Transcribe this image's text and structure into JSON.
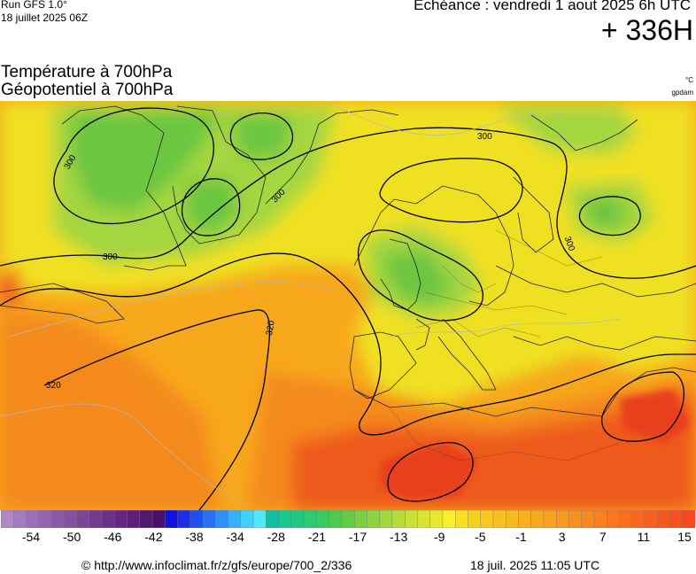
{
  "header": {
    "run_label": "Run GFS 1.0°",
    "run_date": "18 juillet 2025 06Z",
    "valid_time": "Echéance : vendredi 1 aout 2025 6h UTC",
    "lead_time": "+ 336H",
    "title_line1": "Température à 700hPa",
    "title_line2": "Géopotentiel à 700hPa",
    "unit_temperature": "°C",
    "unit_geopotential": "gpdam"
  },
  "map": {
    "contour_labels": [
      "300",
      "300",
      "300",
      "300",
      "300",
      "320",
      "320"
    ],
    "colors": {
      "cold_green": "#6cc640",
      "mid_green": "#a4d640",
      "yellow": "#f0e020",
      "orange": "#f7a81c",
      "warm_orange": "#f48a1c",
      "red_orange": "#ee5a1c",
      "contour": "#000000",
      "coast": "#1e1e1e"
    }
  },
  "colorbar": {
    "colors": [
      "#b088c8",
      "#a47cc0",
      "#9c70b8",
      "#9464b0",
      "#8c5aa8",
      "#8450a0",
      "#7c4498",
      "#743a90",
      "#6c3088",
      "#642880",
      "#5c2078",
      "#541870",
      "#4c1068",
      "#1010e0",
      "#1830e8",
      "#2050ec",
      "#2870f0",
      "#3090f4",
      "#38b0f8",
      "#40d0fc",
      "#50e8ff",
      "#10c0a0",
      "#18c890",
      "#20c880",
      "#30c870",
      "#40c860",
      "#50c850",
      "#64cc44",
      "#78d040",
      "#8cd440",
      "#a0d840",
      "#b4dc3c",
      "#c8e038",
      "#d8e434",
      "#e8e830",
      "#f8f028",
      "#f8e020",
      "#f8d020",
      "#f8c820",
      "#f8c020",
      "#f8b820",
      "#f8b020",
      "#f8a820",
      "#f8a020",
      "#f89820",
      "#f89020",
      "#f88820",
      "#f88020",
      "#f87820",
      "#f87020",
      "#f86820",
      "#f86020",
      "#f85820",
      "#f85020",
      "#f84820"
    ],
    "tick_labels": [
      "-54",
      "-50",
      "-46",
      "-42",
      "-38",
      "-34",
      "-28",
      "-21",
      "-17",
      "-13",
      "-9",
      "-5",
      "-1",
      "3",
      "7",
      "11",
      "15"
    ]
  },
  "footer": {
    "url": "© http://www.infoclimat.fr/z/gfs/europe/700_2/336",
    "timestamp": "18 juil. 2025 11:05 UTC"
  }
}
